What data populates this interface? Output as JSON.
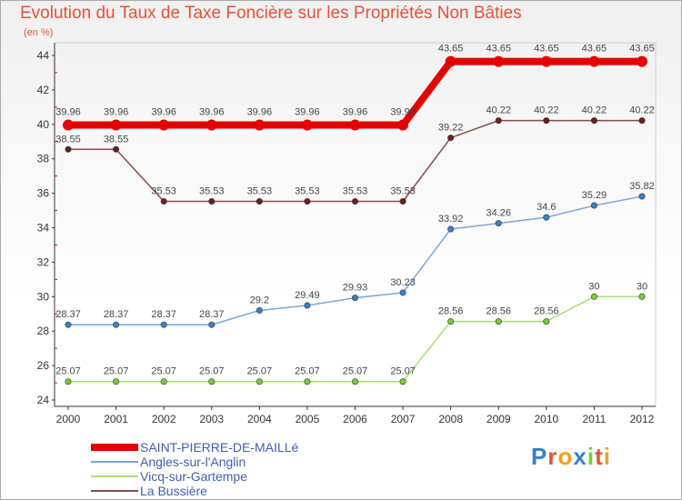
{
  "header": {
    "title": "Evolution du Taux de Taxe Foncière sur les Propriétés Non Bâties",
    "subtitle": "(en %)"
  },
  "logo": {
    "text": "Proxiti"
  },
  "colors": {
    "title": "#e0533a",
    "legend_text": "#3d5fb0",
    "axis": "#333333"
  },
  "chart_data": {
    "type": "line",
    "title": "Evolution du Taux de Taxe Foncière sur les Propriétés Non Bâties",
    "ylabel": "(en %)",
    "xlabel": "",
    "ylim": [
      24,
      44
    ],
    "yticks": [
      24,
      26,
      28,
      30,
      32,
      34,
      36,
      38,
      40,
      42,
      44
    ],
    "grid": false,
    "legend_position": "bottom-left",
    "categories": [
      "2000",
      "2001",
      "2002",
      "2003",
      "2004",
      "2005",
      "2006",
      "2007",
      "2008",
      "2009",
      "2010",
      "2011",
      "2012"
    ],
    "series": [
      {
        "name": "SAINT-PIERRE-DE-MAILLé",
        "color": "#e30000",
        "marker": "#e30000",
        "values": [
          39.96,
          39.96,
          39.96,
          39.96,
          39.96,
          39.96,
          39.96,
          39.96,
          43.65,
          43.65,
          43.65,
          43.65,
          43.65
        ],
        "labels": [
          "39.96",
          "39.96",
          "39.96",
          "39.96",
          "39.96",
          "39.96",
          "39.96",
          "39.96",
          "43.65",
          "43.65",
          "43.65",
          "43.65",
          "43.65"
        ]
      },
      {
        "name": "Angles-sur-l'Anglin",
        "color": "#7aa6d6",
        "marker": "#3a7fc4",
        "values": [
          28.37,
          28.37,
          28.37,
          28.37,
          29.2,
          29.49,
          29.93,
          30.23,
          33.92,
          34.26,
          34.6,
          35.29,
          35.82
        ],
        "labels": [
          "28.37",
          "28.37",
          "28.37",
          "28.37",
          "29.2",
          "29.49",
          "29.93",
          "30.23",
          "33.92",
          "34.26",
          "34.6",
          "35.29",
          "35.82"
        ]
      },
      {
        "name": "Vicq-sur-Gartempe",
        "color": "#a6e07a",
        "marker": "#7ccc3a",
        "values": [
          25.07,
          25.07,
          25.07,
          25.07,
          25.07,
          25.07,
          25.07,
          25.07,
          28.56,
          28.56,
          28.56,
          30,
          30
        ],
        "labels": [
          "25.07",
          "25.07",
          "25.07",
          "25.07",
          "25.07",
          "25.07",
          "25.07",
          "25.07",
          "28.56",
          "28.56",
          "28.56",
          "30",
          "30"
        ]
      },
      {
        "name": "La Bussière",
        "color": "#8b4a4a",
        "marker": "#6b1f1f",
        "values": [
          38.55,
          38.55,
          35.53,
          35.53,
          35.53,
          35.53,
          35.53,
          35.53,
          39.22,
          40.22,
          40.22,
          40.22,
          40.22
        ],
        "labels": [
          "38.55",
          "38.55",
          "35.53",
          "35.53",
          "35.53",
          "35.53",
          "35.53",
          "35.53",
          "39.22",
          "40.22",
          "40.22",
          "40.22",
          "40.22"
        ]
      }
    ]
  }
}
